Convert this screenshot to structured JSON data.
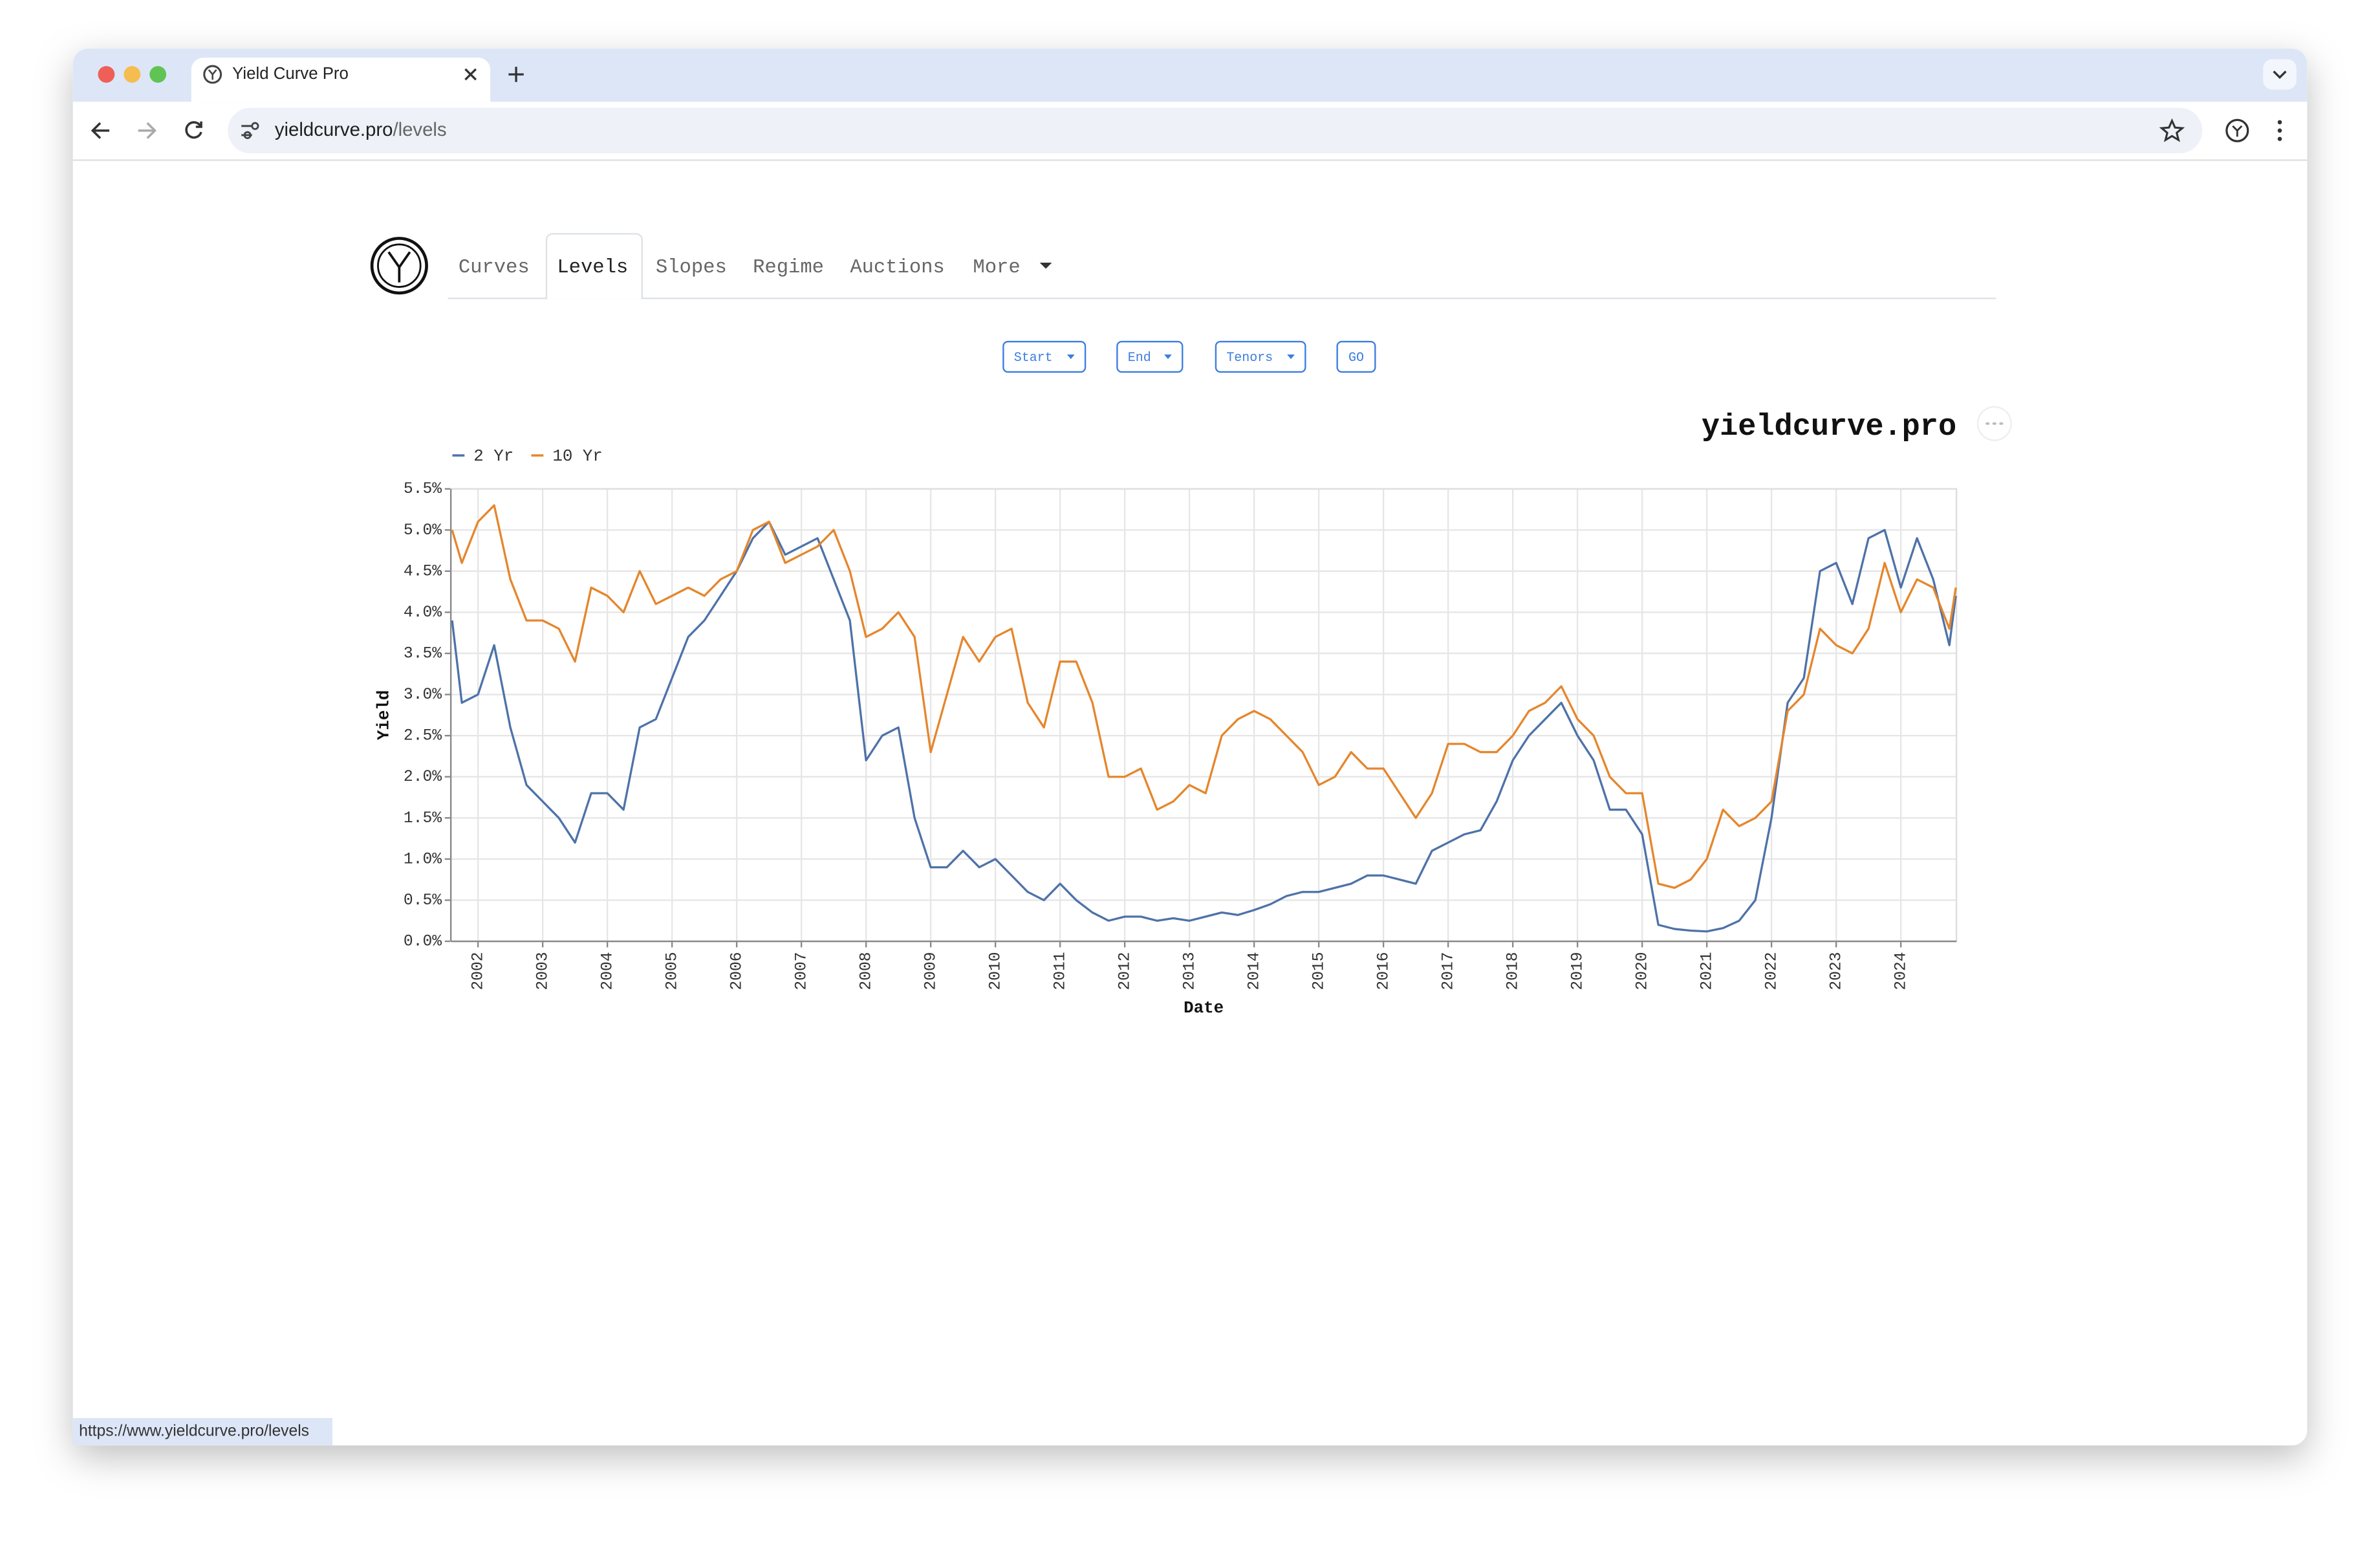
{
  "browser": {
    "tab_title": "Yield Curve Pro",
    "url_host": "yieldcurve.pro",
    "url_path": "/levels",
    "status_url": "https://www.yieldcurve.pro/levels"
  },
  "nav": {
    "items": [
      "Curves",
      "Levels",
      "Slopes",
      "Regime",
      "Auctions",
      "More"
    ],
    "active": 1
  },
  "controls": [
    "Start",
    "End",
    "Tenors",
    "GO"
  ],
  "chart_data": {
    "type": "line",
    "title": "yieldcurve.pro",
    "x_label": "Date",
    "y_label": "Yield",
    "x": [
      2001.6,
      2001.75,
      2002,
      2002.25,
      2002.5,
      2002.75,
      2003,
      2003.25,
      2003.5,
      2003.75,
      2004,
      2004.25,
      2004.5,
      2004.75,
      2005,
      2005.25,
      2005.5,
      2005.75,
      2006,
      2006.25,
      2006.5,
      2006.75,
      2007,
      2007.25,
      2007.5,
      2007.75,
      2008,
      2008.25,
      2008.5,
      2008.75,
      2009,
      2009.25,
      2009.5,
      2009.75,
      2010,
      2010.25,
      2010.5,
      2010.75,
      2011,
      2011.25,
      2011.5,
      2011.75,
      2012,
      2012.25,
      2012.5,
      2012.75,
      2013,
      2013.25,
      2013.5,
      2013.75,
      2014,
      2014.25,
      2014.5,
      2014.75,
      2015,
      2015.25,
      2015.5,
      2015.75,
      2016,
      2016.25,
      2016.5,
      2016.75,
      2017,
      2017.25,
      2017.5,
      2017.75,
      2018,
      2018.25,
      2018.5,
      2018.75,
      2019,
      2019.25,
      2019.5,
      2019.75,
      2020,
      2020.25,
      2020.5,
      2020.75,
      2021,
      2021.25,
      2021.5,
      2021.75,
      2022,
      2022.25,
      2022.5,
      2022.75,
      2023,
      2023.25,
      2023.5,
      2023.75,
      2024,
      2024.25,
      2024.5,
      2024.75,
      2024.85
    ],
    "series": [
      {
        "name": "2 Yr",
        "color": "#4e72a8",
        "values": [
          3.9,
          2.9,
          3.0,
          3.6,
          2.6,
          1.9,
          1.7,
          1.5,
          1.2,
          1.8,
          1.8,
          1.6,
          2.6,
          2.7,
          3.2,
          3.7,
          3.9,
          4.2,
          4.5,
          4.9,
          5.1,
          4.7,
          4.8,
          4.9,
          4.4,
          3.9,
          2.2,
          2.5,
          2.6,
          1.5,
          0.9,
          0.9,
          1.1,
          0.9,
          1.0,
          0.8,
          0.6,
          0.5,
          0.7,
          0.5,
          0.35,
          0.25,
          0.3,
          0.3,
          0.25,
          0.28,
          0.25,
          0.3,
          0.35,
          0.32,
          0.38,
          0.45,
          0.55,
          0.6,
          0.6,
          0.65,
          0.7,
          0.8,
          0.8,
          0.75,
          0.7,
          1.1,
          1.2,
          1.3,
          1.35,
          1.7,
          2.2,
          2.5,
          2.7,
          2.9,
          2.5,
          2.2,
          1.6,
          1.6,
          1.3,
          0.2,
          0.15,
          0.13,
          0.12,
          0.16,
          0.25,
          0.5,
          1.5,
          2.9,
          3.2,
          4.5,
          4.6,
          4.1,
          4.9,
          5.0,
          4.3,
          4.9,
          4.4,
          3.6,
          4.2
        ]
      },
      {
        "name": "10 Yr",
        "color": "#e5862d",
        "values": [
          5.0,
          4.6,
          5.1,
          5.3,
          4.4,
          3.9,
          3.9,
          3.8,
          3.4,
          4.3,
          4.2,
          4.0,
          4.5,
          4.1,
          4.2,
          4.3,
          4.2,
          4.4,
          4.5,
          5.0,
          5.1,
          4.6,
          4.7,
          4.8,
          5.0,
          4.5,
          3.7,
          3.8,
          4.0,
          3.7,
          2.3,
          3.0,
          3.7,
          3.4,
          3.7,
          3.8,
          2.9,
          2.6,
          3.4,
          3.4,
          2.9,
          2.0,
          2.0,
          2.1,
          1.6,
          1.7,
          1.9,
          1.8,
          2.5,
          2.7,
          2.8,
          2.7,
          2.5,
          2.3,
          1.9,
          2.0,
          2.3,
          2.1,
          2.1,
          1.8,
          1.5,
          1.8,
          2.4,
          2.4,
          2.3,
          2.3,
          2.5,
          2.8,
          2.9,
          3.1,
          2.7,
          2.5,
          2.0,
          1.8,
          1.8,
          0.7,
          0.65,
          0.75,
          1.0,
          1.6,
          1.4,
          1.5,
          1.7,
          2.8,
          3.0,
          3.8,
          3.6,
          3.5,
          3.8,
          4.6,
          4.0,
          4.4,
          4.3,
          3.8,
          4.3
        ]
      }
    ],
    "xlim": [
      2001.58,
      2024.86
    ],
    "xticks": [
      2002,
      2003,
      2004,
      2005,
      2006,
      2007,
      2008,
      2009,
      2010,
      2011,
      2012,
      2013,
      2014,
      2015,
      2016,
      2017,
      2018,
      2019,
      2020,
      2021,
      2022,
      2023,
      2024
    ],
    "ylim": [
      0,
      5.5
    ],
    "yticks": [
      {
        "value": 0,
        "label": "0.0%"
      },
      {
        "value": 0.5,
        "label": "0.5%"
      },
      {
        "value": 1,
        "label": "1.0%"
      },
      {
        "value": 1.5,
        "label": "1.5%"
      },
      {
        "value": 2,
        "label": "2.0%"
      },
      {
        "value": 2.5,
        "label": "2.5%"
      },
      {
        "value": 3,
        "label": "3.0%"
      },
      {
        "value": 3.5,
        "label": "3.5%"
      },
      {
        "value": 4,
        "label": "4.0%"
      },
      {
        "value": 4.5,
        "label": "4.5%"
      },
      {
        "value": 5,
        "label": "5.0%"
      },
      {
        "value": 5.5,
        "label": "5.5%"
      }
    ],
    "grid": true,
    "legend": "top-left"
  }
}
